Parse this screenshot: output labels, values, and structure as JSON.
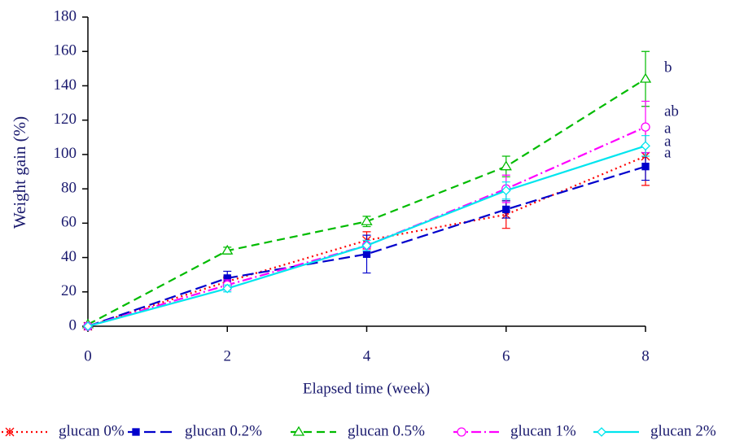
{
  "chart_data": {
    "type": "line",
    "x_label": "Elapsed time (week)",
    "y_label": "Weight gain (%)",
    "x": [
      0,
      2,
      4,
      6,
      8
    ],
    "xlim": [
      0,
      8
    ],
    "xticks": [
      0,
      2,
      4,
      6,
      8
    ],
    "ylim": [
      0,
      180
    ],
    "yticks": [
      0,
      20,
      40,
      60,
      80,
      100,
      120,
      140,
      160,
      180
    ],
    "series": [
      {
        "name": "glucan 0%",
        "color": "#ff0000",
        "dash": "2,4",
        "marker": "x",
        "values": [
          0,
          26,
          50,
          65,
          99
        ],
        "errors": [
          0,
          3,
          5,
          8,
          17
        ]
      },
      {
        "name": "glucan 0.2%",
        "color": "#0000cc",
        "dash": "14,6",
        "marker": "square",
        "values": [
          0,
          28,
          42,
          68,
          93
        ],
        "errors": [
          0,
          4,
          11,
          5,
          8
        ]
      },
      {
        "name": "glucan 0.5%",
        "color": "#00bb00",
        "dash": "10,6",
        "marker": "triangle",
        "values": [
          1,
          44,
          61,
          93,
          144
        ],
        "errors": [
          0,
          2,
          3,
          6,
          16
        ]
      },
      {
        "name": "glucan 1%",
        "color": "#ff00ff",
        "dash": "12,4,2,4",
        "marker": "circle",
        "values": [
          0,
          24,
          47,
          80,
          116
        ],
        "errors": [
          0,
          3,
          3,
          8,
          15
        ]
      },
      {
        "name": "glucan 2%",
        "color": "#00e5ee",
        "dash": "",
        "marker": "diamond",
        "values": [
          0,
          22,
          47,
          79,
          105
        ],
        "errors": [
          0,
          2,
          3,
          5,
          6
        ]
      }
    ],
    "annotations": [
      "b",
      "ab",
      "a",
      "a",
      "a"
    ]
  }
}
